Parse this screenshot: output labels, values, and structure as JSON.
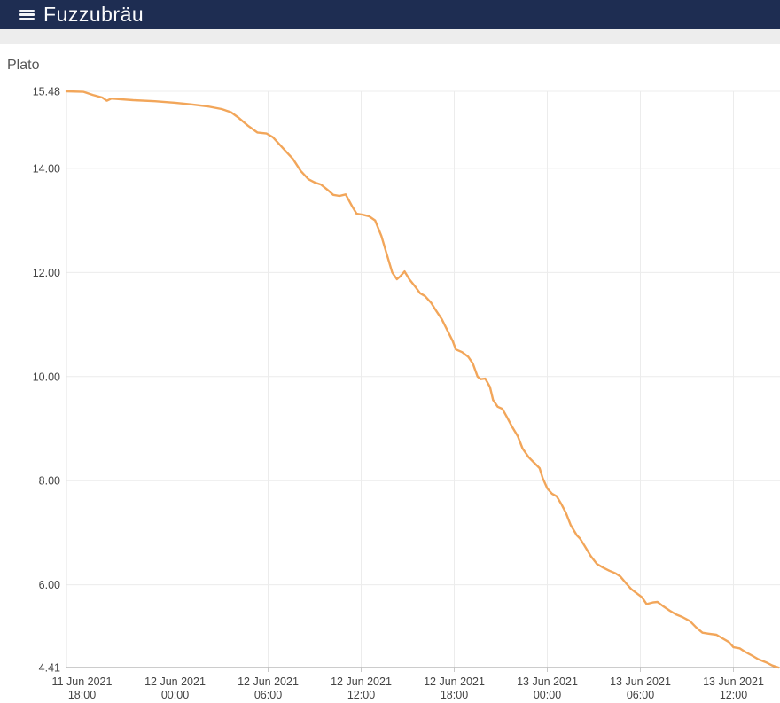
{
  "header": {
    "title": "Fuzzubräu"
  },
  "theme": {
    "header_bg": "#1e2d52",
    "header_text": "#fafbfc",
    "subheader_bg": "#ededed",
    "page_bg": "#ffffff",
    "chart_title_text": "#555555"
  },
  "chart": {
    "title": "Plato"
  },
  "chart_data": {
    "type": "line",
    "title": "Plato",
    "legend": "none",
    "grid": true,
    "x_unit": "hours since 11 Jun 2021 17:00",
    "x_range_hours": [
      0,
      46
    ],
    "ylim": [
      4.41,
      15.48
    ],
    "y_ticks": [
      {
        "value": 15.48,
        "label": "15.48"
      },
      {
        "value": 14.0,
        "label": "14.00"
      },
      {
        "value": 12.0,
        "label": "12.00"
      },
      {
        "value": 10.0,
        "label": "10.00"
      },
      {
        "value": 8.0,
        "label": "8.00"
      },
      {
        "value": 6.0,
        "label": "6.00"
      },
      {
        "value": 4.41,
        "label": "4.41"
      }
    ],
    "x_ticks": [
      {
        "hour": 1,
        "date": "11 Jun 2021",
        "time": "18:00"
      },
      {
        "hour": 7,
        "date": "12 Jun 2021",
        "time": "00:00"
      },
      {
        "hour": 13,
        "date": "12 Jun 2021",
        "time": "06:00"
      },
      {
        "hour": 19,
        "date": "12 Jun 2021",
        "time": "12:00"
      },
      {
        "hour": 25,
        "date": "12 Jun 2021",
        "time": "18:00"
      },
      {
        "hour": 31,
        "date": "13 Jun 2021",
        "time": "00:00"
      },
      {
        "hour": 37,
        "date": "13 Jun 2021",
        "time": "06:00"
      },
      {
        "hour": 43,
        "date": "13 Jun 2021",
        "time": "12:00"
      }
    ],
    "series": [
      {
        "name": "Plato",
        "color": "#f2a65a",
        "points": [
          [
            0,
            15.48
          ],
          [
            1.1,
            15.47
          ],
          [
            1.7,
            15.41
          ],
          [
            2.3,
            15.36
          ],
          [
            2.6,
            15.3
          ],
          [
            2.9,
            15.34
          ],
          [
            4.3,
            15.31
          ],
          [
            5.7,
            15.29
          ],
          [
            7,
            15.26
          ],
          [
            8,
            15.23
          ],
          [
            9.1,
            15.19
          ],
          [
            10,
            15.14
          ],
          [
            10.6,
            15.08
          ],
          [
            11.1,
            14.97
          ],
          [
            11.7,
            14.82
          ],
          [
            12.3,
            14.69
          ],
          [
            12.9,
            14.67
          ],
          [
            13.3,
            14.6
          ],
          [
            13.7,
            14.47
          ],
          [
            14.1,
            14.34
          ],
          [
            14.6,
            14.18
          ],
          [
            15.1,
            13.95
          ],
          [
            15.6,
            13.79
          ],
          [
            16,
            13.73
          ],
          [
            16.4,
            13.69
          ],
          [
            16.9,
            13.57
          ],
          [
            17.2,
            13.49
          ],
          [
            17.6,
            13.47
          ],
          [
            18,
            13.5
          ],
          [
            18.4,
            13.28
          ],
          [
            18.7,
            13.13
          ],
          [
            19.1,
            13.11
          ],
          [
            19.5,
            13.08
          ],
          [
            19.9,
            13.0
          ],
          [
            20.3,
            12.7
          ],
          [
            20.6,
            12.4
          ],
          [
            21,
            12.0
          ],
          [
            21.3,
            11.87
          ],
          [
            21.5,
            11.92
          ],
          [
            21.8,
            12.02
          ],
          [
            22.1,
            11.87
          ],
          [
            22.5,
            11.72
          ],
          [
            22.8,
            11.6
          ],
          [
            23.1,
            11.55
          ],
          [
            23.5,
            11.42
          ],
          [
            23.8,
            11.28
          ],
          [
            24.2,
            11.1
          ],
          [
            24.5,
            10.92
          ],
          [
            24.9,
            10.68
          ],
          [
            25.1,
            10.52
          ],
          [
            25.5,
            10.47
          ],
          [
            25.9,
            10.38
          ],
          [
            26.2,
            10.25
          ],
          [
            26.5,
            10.0
          ],
          [
            26.7,
            9.95
          ],
          [
            27,
            9.96
          ],
          [
            27.3,
            9.8
          ],
          [
            27.5,
            9.55
          ],
          [
            27.8,
            9.42
          ],
          [
            28.1,
            9.38
          ],
          [
            28.4,
            9.22
          ],
          [
            28.7,
            9.05
          ],
          [
            29.1,
            8.85
          ],
          [
            29.4,
            8.62
          ],
          [
            29.8,
            8.45
          ],
          [
            30.1,
            8.36
          ],
          [
            30.5,
            8.24
          ],
          [
            30.7,
            8.05
          ],
          [
            31,
            7.85
          ],
          [
            31.3,
            7.75
          ],
          [
            31.6,
            7.7
          ],
          [
            31.9,
            7.55
          ],
          [
            32.2,
            7.38
          ],
          [
            32.5,
            7.15
          ],
          [
            32.9,
            6.95
          ],
          [
            33.1,
            6.89
          ],
          [
            33.4,
            6.75
          ],
          [
            33.8,
            6.55
          ],
          [
            34.2,
            6.4
          ],
          [
            34.6,
            6.33
          ],
          [
            35,
            6.27
          ],
          [
            35.4,
            6.22
          ],
          [
            35.7,
            6.16
          ],
          [
            36.1,
            6.02
          ],
          [
            36.4,
            5.92
          ],
          [
            36.7,
            5.85
          ],
          [
            37.1,
            5.76
          ],
          [
            37.4,
            5.63
          ],
          [
            37.8,
            5.66
          ],
          [
            38.1,
            5.67
          ],
          [
            38.5,
            5.58
          ],
          [
            38.9,
            5.5
          ],
          [
            39.3,
            5.43
          ],
          [
            39.7,
            5.38
          ],
          [
            40.2,
            5.3
          ],
          [
            40.6,
            5.18
          ],
          [
            41,
            5.08
          ],
          [
            41.4,
            5.06
          ],
          [
            41.9,
            5.04
          ],
          [
            42.3,
            4.97
          ],
          [
            42.7,
            4.9
          ],
          [
            43,
            4.8
          ],
          [
            43.4,
            4.78
          ],
          [
            43.7,
            4.72
          ],
          [
            44.2,
            4.64
          ],
          [
            44.6,
            4.57
          ],
          [
            45.1,
            4.51
          ],
          [
            45.5,
            4.45
          ],
          [
            45.9,
            4.41
          ]
        ]
      }
    ],
    "colors": {
      "grid": "#ececec",
      "axis_line": "#9a9a9a",
      "tick_mark": "#c9c9c9",
      "tick_text": "#444444",
      "plot_border_left": "#e3e3e3"
    }
  }
}
